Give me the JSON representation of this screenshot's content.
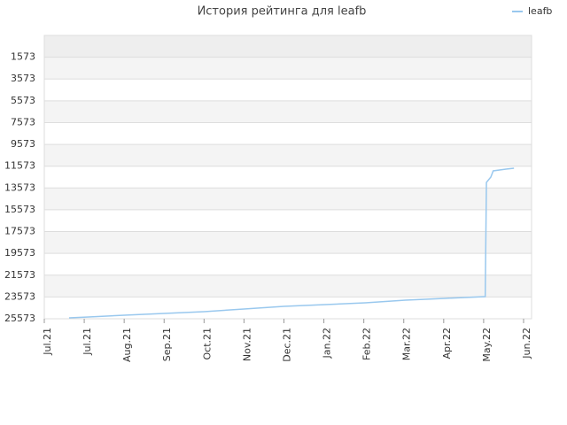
{
  "chart_data": {
    "type": "line",
    "title": "История рейтинга для leafb",
    "x": [
      0.62,
      1.11,
      2.0,
      3.0,
      4.0,
      5.0,
      6.0,
      7.04,
      8.04,
      9.04,
      10.04,
      11.04,
      11.07,
      11.18,
      11.24,
      11.56,
      11.76
    ],
    "series": [
      {
        "name": "leafb",
        "color": "#99c8ee",
        "values": [
          25490,
          25410,
          25250,
          25090,
          24920,
          24680,
          24440,
          24270,
          24110,
          23870,
          23700,
          23540,
          13060,
          12570,
          12000,
          11840,
          11760
        ]
      }
    ],
    "xlim": [
      0,
      12.2
    ],
    "xticks": [
      {
        "value": 0,
        "label": "Jul.21"
      },
      {
        "value": 1,
        "label": "Jul.21"
      },
      {
        "value": 2,
        "label": "Aug.21"
      },
      {
        "value": 3,
        "label": "Sep.21"
      },
      {
        "value": 4,
        "label": "Oct.21"
      },
      {
        "value": 5,
        "label": "Nov.21"
      },
      {
        "value": 6,
        "label": "Dec.21"
      },
      {
        "value": 7,
        "label": "Jan.22"
      },
      {
        "value": 8,
        "label": "Feb.22"
      },
      {
        "value": 9,
        "label": "Mar.22"
      },
      {
        "value": 10,
        "label": "Apr.22"
      },
      {
        "value": 11,
        "label": "May.22"
      },
      {
        "value": 12,
        "label": "Jun.22"
      }
    ],
    "ylim": [
      25573,
      -427
    ],
    "yticks": [
      1573,
      3573,
      5573,
      7573,
      9573,
      11573,
      13573,
      15573,
      17573,
      19573,
      21573,
      23573,
      25573
    ],
    "grid": true,
    "legend": "top-right"
  }
}
